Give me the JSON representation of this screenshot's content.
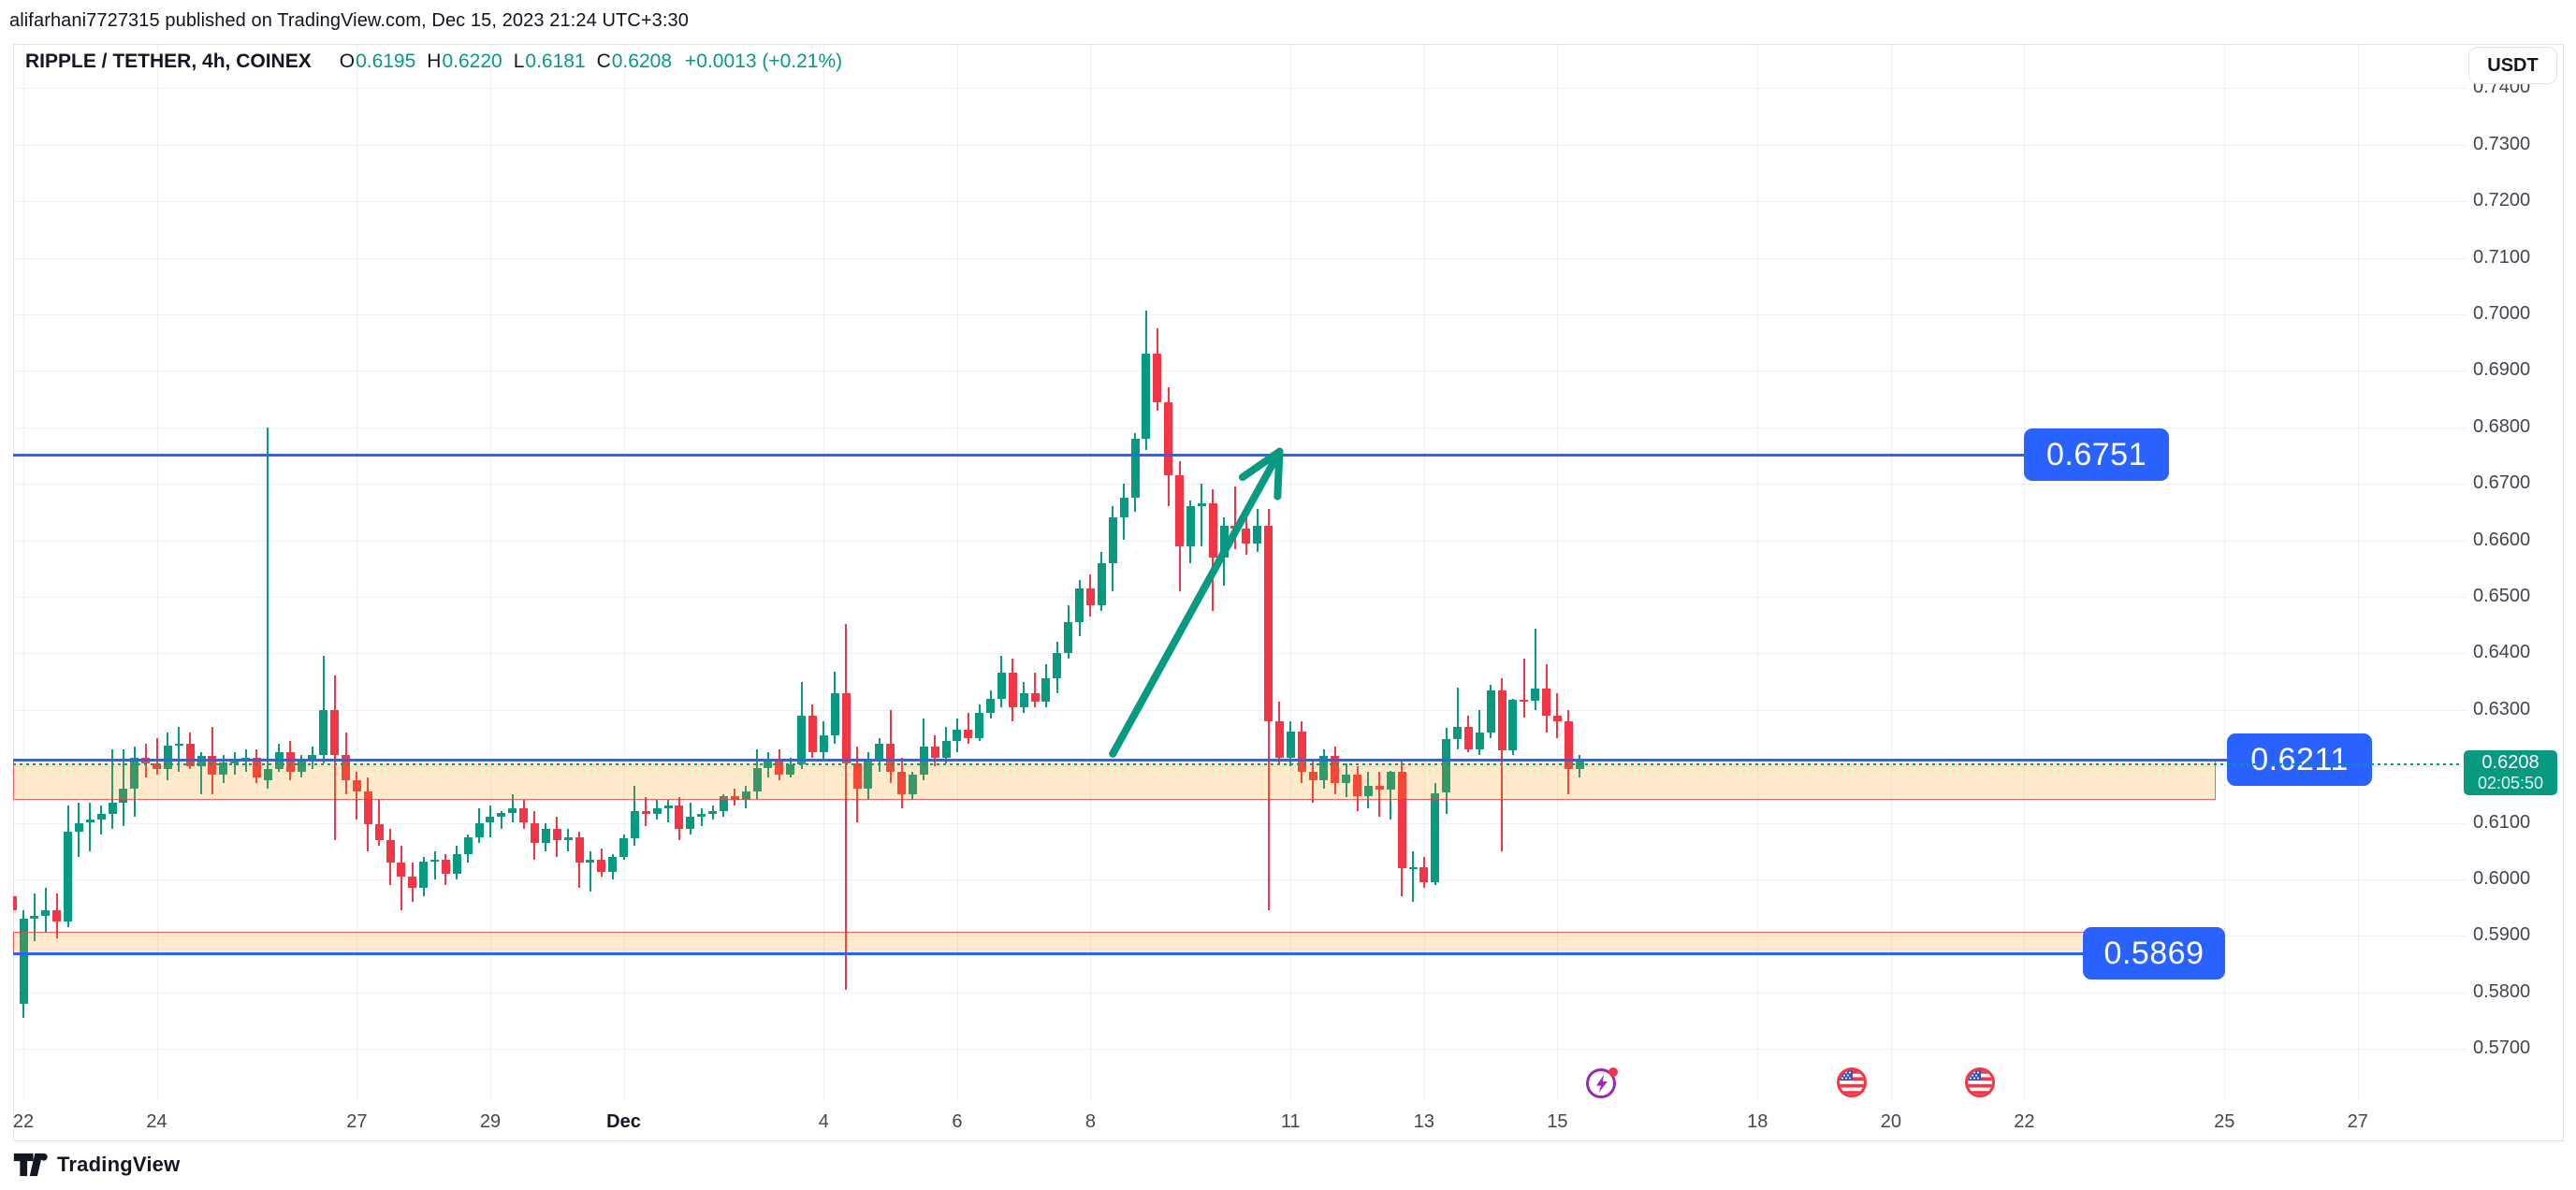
{
  "header": {
    "text": "alifarhani7727315 published on TradingView.com, Dec 15, 2023 21:24 UTC+3:30"
  },
  "legend": {
    "symbol": "RIPPLE / TETHER, 4h, COINEX",
    "o_label": "O",
    "o": "0.6195",
    "h_label": "H",
    "h": "0.6220",
    "l_label": "L",
    "l": "0.6181",
    "c_label": "C",
    "c": "0.6208",
    "change": "+0.0013 (+0.21%)"
  },
  "usdt_button": {
    "label": "USDT"
  },
  "footer": {
    "brand": "TradingView"
  },
  "colors": {
    "up": "#089981",
    "down": "#F23645",
    "level_blue": "#2962FF",
    "zone_fill": "rgba(255,152,0,0.2)",
    "zone_border": "rgba(242,54,69,0.75)",
    "arrow": "#089981",
    "flash_event": "#9C27B0",
    "flag_event": "#F23645"
  },
  "chart_data": {
    "type": "candlestick",
    "title": "RIPPLE / TETHER, 4h, COINEX",
    "symbol": "RIPPLE / TETHER",
    "interval": "4h",
    "exchange": "COINEX",
    "quote_currency": "USDT",
    "ohlc_format": [
      "open",
      "high",
      "low",
      "close"
    ],
    "start_index": -1,
    "y_axis": {
      "ticks": [
        "0.7400",
        "0.7300",
        "0.7200",
        "0.7100",
        "0.7000",
        "0.6900",
        "0.6800",
        "0.6700",
        "0.6600",
        "0.6500",
        "0.6400",
        "0.6300",
        "0.6100",
        "0.6000",
        "0.5900",
        "0.5800",
        "0.5700"
      ],
      "min": 0.5695,
      "max": 0.7445
    },
    "x_axis": {
      "labels": [
        {
          "t": "22",
          "i": 0
        },
        {
          "t": "24",
          "i": 12
        },
        {
          "t": "27",
          "i": 30
        },
        {
          "t": "29",
          "i": 42
        },
        {
          "t": "Dec",
          "i": 54,
          "bold": true
        },
        {
          "t": "4",
          "i": 72
        },
        {
          "t": "6",
          "i": 84
        },
        {
          "t": "8",
          "i": 96
        },
        {
          "t": "11",
          "i": 114
        },
        {
          "t": "13",
          "i": 126
        },
        {
          "t": "15",
          "i": 138
        },
        {
          "t": "18",
          "i": 156
        },
        {
          "t": "20",
          "i": 168
        },
        {
          "t": "22",
          "i": 180
        },
        {
          "t": "25",
          "i": 198
        },
        {
          "t": "27",
          "i": 210
        }
      ]
    },
    "levels": [
      {
        "price": 0.6751,
        "label": "0.6751"
      },
      {
        "price": 0.6211,
        "label": "0.6211"
      },
      {
        "price": 0.5869,
        "label": "0.5869"
      }
    ],
    "zones": [
      {
        "top": 0.6211,
        "bottom": 0.6141
      },
      {
        "top": 0.5907,
        "bottom": 0.5869
      }
    ],
    "last_price": {
      "price": 0.6208,
      "text": "0.6208",
      "countdown": "02:05:50"
    },
    "arrow": {
      "from_i": 98,
      "from_p": 0.6222,
      "to_i": 113,
      "to_p": 0.6757
    },
    "events": [
      {
        "kind": "flash-event",
        "i": 142
      },
      {
        "kind": "us-economic-event",
        "i": 164.5
      },
      {
        "kind": "us-economic-event",
        "i": 176
      }
    ],
    "candles": [
      [
        0.597,
        0.5985,
        0.593,
        0.5945
      ],
      [
        0.578,
        0.5945,
        0.5755,
        0.593
      ],
      [
        0.593,
        0.5975,
        0.589,
        0.5935
      ],
      [
        0.5935,
        0.5985,
        0.5905,
        0.5945
      ],
      [
        0.5945,
        0.5975,
        0.5895,
        0.5925
      ],
      [
        0.5925,
        0.613,
        0.5915,
        0.6085
      ],
      [
        0.6085,
        0.6135,
        0.604,
        0.61
      ],
      [
        0.61,
        0.6135,
        0.605,
        0.6105
      ],
      [
        0.6105,
        0.613,
        0.608,
        0.6115
      ],
      [
        0.6115,
        0.623,
        0.609,
        0.6135
      ],
      [
        0.6135,
        0.623,
        0.6095,
        0.616
      ],
      [
        0.616,
        0.6235,
        0.611,
        0.6215
      ],
      [
        0.6215,
        0.624,
        0.618,
        0.6205
      ],
      [
        0.6205,
        0.625,
        0.6185,
        0.6195
      ],
      [
        0.6195,
        0.626,
        0.6175,
        0.6236
      ],
      [
        0.6236,
        0.627,
        0.619,
        0.624
      ],
      [
        0.624,
        0.626,
        0.6195,
        0.62
      ],
      [
        0.62,
        0.6225,
        0.615,
        0.6218
      ],
      [
        0.6218,
        0.627,
        0.615,
        0.6185
      ],
      [
        0.6185,
        0.622,
        0.617,
        0.6207
      ],
      [
        0.6207,
        0.6225,
        0.6185,
        0.621
      ],
      [
        0.621,
        0.623,
        0.619,
        0.6215
      ],
      [
        0.6215,
        0.623,
        0.617,
        0.618
      ],
      [
        0.6175,
        0.68,
        0.616,
        0.6195
      ],
      [
        0.6195,
        0.624,
        0.619,
        0.6225
      ],
      [
        0.6225,
        0.6245,
        0.6175,
        0.619
      ],
      [
        0.619,
        0.622,
        0.618,
        0.621
      ],
      [
        0.621,
        0.6235,
        0.6195,
        0.622
      ],
      [
        0.622,
        0.6395,
        0.6205,
        0.63
      ],
      [
        0.63,
        0.636,
        0.607,
        0.622
      ],
      [
        0.622,
        0.626,
        0.615,
        0.6175
      ],
      [
        0.6175,
        0.619,
        0.6105,
        0.6155
      ],
      [
        0.6155,
        0.618,
        0.605,
        0.6097
      ],
      [
        0.6097,
        0.614,
        0.606,
        0.607
      ],
      [
        0.607,
        0.609,
        0.599,
        0.603
      ],
      [
        0.603,
        0.606,
        0.5945,
        0.6005
      ],
      [
        0.6005,
        0.603,
        0.596,
        0.5985
      ],
      [
        0.5985,
        0.604,
        0.597,
        0.6032
      ],
      [
        0.6032,
        0.605,
        0.6,
        0.6035
      ],
      [
        0.6035,
        0.6045,
        0.599,
        0.601
      ],
      [
        0.601,
        0.606,
        0.6,
        0.6045
      ],
      [
        0.6045,
        0.608,
        0.603,
        0.6075
      ],
      [
        0.6075,
        0.6125,
        0.6065,
        0.61
      ],
      [
        0.61,
        0.613,
        0.6075,
        0.611
      ],
      [
        0.611,
        0.612,
        0.609,
        0.6117
      ],
      [
        0.6117,
        0.615,
        0.61,
        0.6125
      ],
      [
        0.6125,
        0.614,
        0.609,
        0.61
      ],
      [
        0.61,
        0.612,
        0.6035,
        0.6065
      ],
      [
        0.6065,
        0.61,
        0.605,
        0.609
      ],
      [
        0.609,
        0.611,
        0.604,
        0.607
      ],
      [
        0.607,
        0.609,
        0.605,
        0.6075
      ],
      [
        0.6075,
        0.6085,
        0.5985,
        0.603
      ],
      [
        0.603,
        0.605,
        0.5978,
        0.6035
      ],
      [
        0.6035,
        0.6055,
        0.6005,
        0.6013
      ],
      [
        0.6013,
        0.6045,
        0.6,
        0.604
      ],
      [
        0.604,
        0.608,
        0.6035,
        0.6072
      ],
      [
        0.6072,
        0.6165,
        0.606,
        0.612
      ],
      [
        0.612,
        0.6145,
        0.6095,
        0.6115
      ],
      [
        0.6115,
        0.614,
        0.6105,
        0.6125
      ],
      [
        0.6125,
        0.614,
        0.61,
        0.613
      ],
      [
        0.613,
        0.6145,
        0.607,
        0.609
      ],
      [
        0.609,
        0.6135,
        0.608,
        0.611
      ],
      [
        0.611,
        0.6125,
        0.6095,
        0.6115
      ],
      [
        0.6115,
        0.613,
        0.6105,
        0.612
      ],
      [
        0.612,
        0.615,
        0.611,
        0.6148
      ],
      [
        0.6148,
        0.616,
        0.613,
        0.614
      ],
      [
        0.614,
        0.6165,
        0.6125,
        0.6155
      ],
      [
        0.6155,
        0.623,
        0.6143,
        0.6197
      ],
      [
        0.6197,
        0.6225,
        0.618,
        0.6211
      ],
      [
        0.6211,
        0.623,
        0.6175,
        0.6185
      ],
      [
        0.6185,
        0.6215,
        0.618,
        0.6204
      ],
      [
        0.6204,
        0.635,
        0.6195,
        0.629
      ],
      [
        0.629,
        0.631,
        0.6215,
        0.6225
      ],
      [
        0.6225,
        0.628,
        0.621,
        0.6255
      ],
      [
        0.6255,
        0.6368,
        0.624,
        0.633
      ],
      [
        0.633,
        0.6451,
        0.5805,
        0.6205
      ],
      [
        0.6205,
        0.6235,
        0.61,
        0.616
      ],
      [
        0.616,
        0.6225,
        0.614,
        0.621
      ],
      [
        0.621,
        0.625,
        0.619,
        0.624
      ],
      [
        0.624,
        0.63,
        0.617,
        0.619
      ],
      [
        0.619,
        0.6215,
        0.6125,
        0.615
      ],
      [
        0.615,
        0.619,
        0.614,
        0.6185
      ],
      [
        0.6185,
        0.6285,
        0.6175,
        0.6235
      ],
      [
        0.6235,
        0.6255,
        0.62,
        0.6215
      ],
      [
        0.6215,
        0.627,
        0.6205,
        0.6245
      ],
      [
        0.6245,
        0.6285,
        0.6225,
        0.6265
      ],
      [
        0.6265,
        0.6295,
        0.624,
        0.625
      ],
      [
        0.625,
        0.631,
        0.6245,
        0.6295
      ],
      [
        0.6295,
        0.6335,
        0.6285,
        0.632
      ],
      [
        0.632,
        0.6395,
        0.6305,
        0.6365
      ],
      [
        0.6365,
        0.639,
        0.628,
        0.6305
      ],
      [
        0.6305,
        0.635,
        0.6295,
        0.633
      ],
      [
        0.633,
        0.6365,
        0.6305,
        0.6315
      ],
      [
        0.6315,
        0.638,
        0.6305,
        0.6355
      ],
      [
        0.6355,
        0.642,
        0.633,
        0.64
      ],
      [
        0.64,
        0.6485,
        0.639,
        0.6455
      ],
      [
        0.6455,
        0.653,
        0.643,
        0.6515
      ],
      [
        0.6515,
        0.654,
        0.6465,
        0.6485
      ],
      [
        0.6485,
        0.658,
        0.6475,
        0.656
      ],
      [
        0.656,
        0.666,
        0.651,
        0.664
      ],
      [
        0.664,
        0.67,
        0.66,
        0.6675
      ],
      [
        0.6675,
        0.679,
        0.665,
        0.678
      ],
      [
        0.678,
        0.7006,
        0.676,
        0.693
      ],
      [
        0.693,
        0.6975,
        0.683,
        0.6845
      ],
      [
        0.6845,
        0.687,
        0.666,
        0.6715
      ],
      [
        0.6715,
        0.674,
        0.651,
        0.659
      ],
      [
        0.659,
        0.667,
        0.656,
        0.666
      ],
      [
        0.666,
        0.67,
        0.659,
        0.6665
      ],
      [
        0.6665,
        0.669,
        0.6475,
        0.657
      ],
      [
        0.657,
        0.664,
        0.652,
        0.6625
      ],
      [
        0.6625,
        0.6695,
        0.6585,
        0.662
      ],
      [
        0.662,
        0.6645,
        0.6575,
        0.6595
      ],
      [
        0.6595,
        0.6655,
        0.658,
        0.6625
      ],
      [
        0.6625,
        0.6655,
        0.5945,
        0.628
      ],
      [
        0.628,
        0.6315,
        0.6205,
        0.6215
      ],
      [
        0.6215,
        0.628,
        0.62,
        0.6262
      ],
      [
        0.6262,
        0.628,
        0.617,
        0.619
      ],
      [
        0.619,
        0.6212,
        0.6135,
        0.6176
      ],
      [
        0.6176,
        0.623,
        0.616,
        0.6218
      ],
      [
        0.6218,
        0.6235,
        0.615,
        0.617
      ],
      [
        0.617,
        0.6205,
        0.6145,
        0.6185
      ],
      [
        0.6185,
        0.62,
        0.612,
        0.6148
      ],
      [
        0.6148,
        0.619,
        0.6125,
        0.6165
      ],
      [
        0.6165,
        0.619,
        0.611,
        0.6158
      ],
      [
        0.6158,
        0.6192,
        0.6105,
        0.619
      ],
      [
        0.619,
        0.621,
        0.597,
        0.602
      ],
      [
        0.602,
        0.605,
        0.596,
        0.6022
      ],
      [
        0.6022,
        0.604,
        0.5985,
        0.5995
      ],
      [
        0.5995,
        0.617,
        0.599,
        0.6152
      ],
      [
        0.6154,
        0.6268,
        0.6116,
        0.6248
      ],
      [
        0.6248,
        0.634,
        0.623,
        0.627
      ],
      [
        0.627,
        0.629,
        0.6225,
        0.623
      ],
      [
        0.623,
        0.63,
        0.622,
        0.626
      ],
      [
        0.626,
        0.6345,
        0.625,
        0.6335
      ],
      [
        0.6335,
        0.6355,
        0.605,
        0.6228
      ],
      [
        0.6228,
        0.632,
        0.622,
        0.6318
      ],
      [
        0.6318,
        0.639,
        0.6287,
        0.6316
      ],
      [
        0.6316,
        0.6444,
        0.63,
        0.6338
      ],
      [
        0.6338,
        0.638,
        0.626,
        0.6289
      ],
      [
        0.6289,
        0.633,
        0.625,
        0.628
      ],
      [
        0.628,
        0.63,
        0.615,
        0.6195
      ],
      [
        0.6195,
        0.622,
        0.6181,
        0.6208
      ]
    ]
  }
}
